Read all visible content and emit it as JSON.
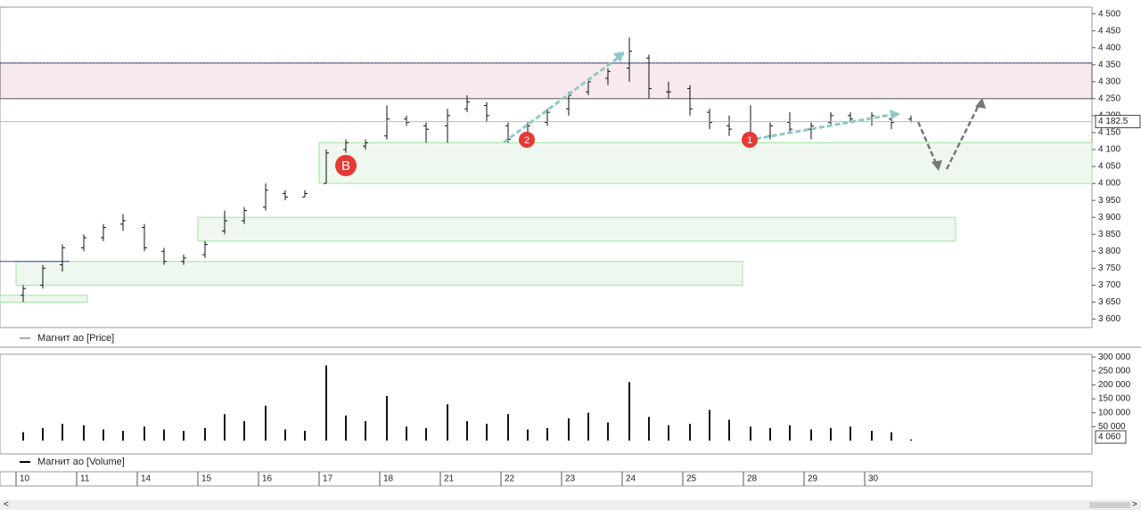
{
  "chart_data": [
    {
      "type": "ohlc",
      "legend": "Магнит ао [Price]",
      "categories": [
        "10",
        null,
        null,
        "11",
        null,
        null,
        "14",
        null,
        null,
        "15",
        null,
        null,
        "16",
        null,
        null,
        "17",
        null,
        null,
        "18",
        null,
        null,
        "21",
        null,
        null,
        "22",
        null,
        null,
        "23",
        null,
        null,
        "24",
        null,
        null,
        "25",
        null,
        null,
        "28",
        null,
        null,
        "29",
        null,
        null,
        "30",
        null,
        null
      ],
      "open": [
        3670,
        3700,
        3760,
        3810,
        3840,
        3880,
        3870,
        3800,
        3770,
        3790,
        3860,
        3890,
        3930,
        3970,
        3960,
        4000,
        4100,
        4110,
        4140,
        4190,
        4170,
        4170,
        4220,
        4230,
        4170,
        4140,
        4180,
        4220,
        4270,
        4310,
        4340,
        4370,
        4270,
        4280,
        4210,
        4170,
        4150,
        4140,
        4180,
        4160,
        4180,
        4200,
        4190,
        4190,
        4190
      ],
      "high": [
        3700,
        3760,
        3820,
        3850,
        3880,
        3910,
        3880,
        3810,
        3790,
        3830,
        3920,
        3930,
        4000,
        3980,
        3980,
        4100,
        4130,
        4130,
        4230,
        4200,
        4180,
        4220,
        4260,
        4240,
        4180,
        4180,
        4220,
        4270,
        4310,
        4340,
        4430,
        4380,
        4300,
        4290,
        4220,
        4200,
        4230,
        4180,
        4210,
        4180,
        4210,
        4210,
        4210,
        4200,
        4200
      ],
      "low": [
        3650,
        3690,
        3740,
        3800,
        3830,
        3860,
        3800,
        3760,
        3760,
        3780,
        3850,
        3880,
        3920,
        3950,
        3960,
        4000,
        4090,
        4100,
        4130,
        4170,
        4120,
        4120,
        4210,
        4180,
        4120,
        4130,
        4170,
        4200,
        4260,
        4290,
        4300,
        4250,
        4250,
        4200,
        4160,
        4140,
        4120,
        4130,
        4150,
        4130,
        4170,
        4180,
        4170,
        4160,
        4180
      ],
      "close": [
        3690,
        3750,
        3810,
        3840,
        3870,
        3890,
        3810,
        3770,
        3780,
        3820,
        3890,
        3920,
        3980,
        3960,
        3970,
        4090,
        4120,
        4120,
        4190,
        4180,
        4160,
        4200,
        4240,
        4200,
        4130,
        4170,
        4210,
        4260,
        4300,
        4330,
        4390,
        4280,
        4270,
        4220,
        4180,
        4160,
        4140,
        4170,
        4160,
        4170,
        4200,
        4190,
        4200,
        4180,
        4182.5
      ],
      "last_value_label": "4 182.5",
      "ylim": [
        3575,
        4520
      ],
      "yticks": [
        {
          "value": 3600,
          "label": "3 600"
        },
        {
          "value": 3650,
          "label": "3 650"
        },
        {
          "value": 3700,
          "label": "3 700"
        },
        {
          "value": 3750,
          "label": "3 750"
        },
        {
          "value": 3800,
          "label": "3 800"
        },
        {
          "value": 3850,
          "label": "3 850"
        },
        {
          "value": 3900,
          "label": "3 900"
        },
        {
          "value": 3950,
          "label": "3 950"
        },
        {
          "value": 4000,
          "label": "4 000"
        },
        {
          "value": 4050,
          "label": "4 050"
        },
        {
          "value": 4100,
          "label": "4 100"
        },
        {
          "value": 4150,
          "label": "4 150"
        },
        {
          "value": 4200,
          "label": "4 200"
        },
        {
          "value": 4250,
          "label": "4 250"
        },
        {
          "value": 4300,
          "label": "4 300"
        },
        {
          "value": 4350,
          "label": "4 350"
        },
        {
          "value": 4400,
          "label": "4 400"
        },
        {
          "value": 4450,
          "label": "4 450"
        },
        {
          "value": 4500,
          "label": "4 500"
        }
      ],
      "zones": [
        {
          "low": 4250,
          "high": 4355,
          "color": "#f7e9ee"
        },
        {
          "low": 4000,
          "high": 4120,
          "color": "#eef8ee"
        },
        {
          "low": 3830,
          "high": 3900,
          "color": "#eef8ee"
        },
        {
          "low": 3700,
          "high": 3770,
          "color": "#eef8ee"
        },
        {
          "low": 3650,
          "high": 3670,
          "color": "#eef8ee"
        }
      ],
      "markers": [
        "B",
        "2",
        "1"
      ]
    },
    {
      "type": "volume",
      "legend": "Магнит ао [Volume]",
      "values": [
        30000,
        45000,
        60000,
        55000,
        40000,
        35000,
        50000,
        40000,
        35000,
        45000,
        95000,
        70000,
        125000,
        40000,
        35000,
        270000,
        90000,
        70000,
        160000,
        50000,
        45000,
        130000,
        70000,
        60000,
        95000,
        40000,
        45000,
        80000,
        100000,
        65000,
        210000,
        85000,
        55000,
        60000,
        110000,
        75000,
        50000,
        45000,
        55000,
        40000,
        45000,
        50000,
        35000,
        30000,
        4060
      ],
      "last_value_label": "4 060",
      "ylim": [
        0,
        310000
      ],
      "yticks": [
        {
          "value": 50000,
          "label": "50 000"
        },
        {
          "value": 100000,
          "label": "100 000"
        },
        {
          "value": 150000,
          "label": "150 000"
        },
        {
          "value": 200000,
          "label": "200 000"
        },
        {
          "value": 250000,
          "label": "250 000"
        },
        {
          "value": 300000,
          "label": "300 000"
        }
      ]
    }
  ]
}
